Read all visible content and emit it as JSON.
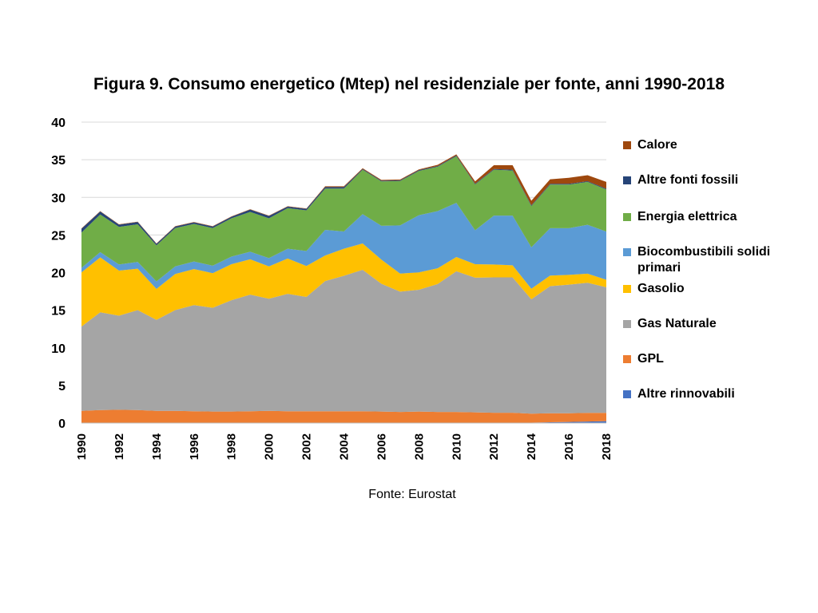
{
  "chart_data": {
    "type": "area",
    "stacked": true,
    "title": "Figura 9. Consumo energetico (Mtep) nel residenziale per fonte, anni 1990-2018",
    "source": "Fonte: Eurostat",
    "xlabel": "",
    "ylabel": "",
    "ylim": [
      0,
      40
    ],
    "yticks": [
      "0",
      "5",
      "10",
      "15",
      "20",
      "25",
      "30",
      "35",
      "40"
    ],
    "x": [
      1990,
      1991,
      1992,
      1993,
      1994,
      1995,
      1996,
      1997,
      1998,
      1999,
      2000,
      2001,
      2002,
      2003,
      2004,
      2005,
      2006,
      2007,
      2008,
      2009,
      2010,
      2011,
      2012,
      2013,
      2014,
      2015,
      2016,
      2017,
      2018
    ],
    "xticks": [
      "1990",
      "1992",
      "1994",
      "1996",
      "1998",
      "2000",
      "2002",
      "2004",
      "2006",
      "2008",
      "2010",
      "2012",
      "2014",
      "2016",
      "2018"
    ],
    "grid": "horizontal",
    "legend_position": "right",
    "series": [
      {
        "name": "Altre rinnovabili",
        "color": "#4472C4",
        "values": [
          0.02,
          0.02,
          0.02,
          0.02,
          0.02,
          0.02,
          0.02,
          0.02,
          0.02,
          0.02,
          0.02,
          0.02,
          0.02,
          0.02,
          0.02,
          0.02,
          0.02,
          0.02,
          0.02,
          0.02,
          0.02,
          0.02,
          0.02,
          0.02,
          0.05,
          0.1,
          0.15,
          0.2,
          0.25
        ]
      },
      {
        "name": "GPL",
        "color": "#ED7D31",
        "values": [
          1.6,
          1.7,
          1.75,
          1.7,
          1.6,
          1.6,
          1.55,
          1.5,
          1.5,
          1.55,
          1.6,
          1.55,
          1.55,
          1.55,
          1.55,
          1.55,
          1.5,
          1.45,
          1.5,
          1.45,
          1.45,
          1.4,
          1.35,
          1.35,
          1.2,
          1.2,
          1.15,
          1.15,
          1.1
        ]
      },
      {
        "name": "Gas Naturale",
        "color": "#A5A5A5",
        "values": [
          11.2,
          13.0,
          12.5,
          13.3,
          12.1,
          13.4,
          14.1,
          13.8,
          14.8,
          15.5,
          14.9,
          15.6,
          15.2,
          17.3,
          18.0,
          18.8,
          17.0,
          16.0,
          16.2,
          17.0,
          18.7,
          17.9,
          18.0,
          18.0,
          15.2,
          16.9,
          17.1,
          17.3,
          16.7
        ]
      },
      {
        "name": "Gasolio",
        "color": "#FFC000",
        "values": [
          7.2,
          7.3,
          6.0,
          5.5,
          4.1,
          4.8,
          4.8,
          4.6,
          4.8,
          4.7,
          4.3,
          4.7,
          4.1,
          3.4,
          3.6,
          3.5,
          3.2,
          2.4,
          2.3,
          2.1,
          1.9,
          1.8,
          1.7,
          1.6,
          1.4,
          1.4,
          1.3,
          1.2,
          1.0
        ]
      },
      {
        "name": "Biocombustibili solidi primari",
        "color": "#5B9BD5",
        "values": [
          0.6,
          0.7,
          0.8,
          0.9,
          1.0,
          1.0,
          1.0,
          1.0,
          1.0,
          1.0,
          1.1,
          1.3,
          2.0,
          3.4,
          2.3,
          3.9,
          4.5,
          6.4,
          7.6,
          7.6,
          7.2,
          4.5,
          6.5,
          6.6,
          5.5,
          6.3,
          6.2,
          6.5,
          6.4
        ]
      },
      {
        "name": "Energia elettrica",
        "color": "#70AD47",
        "values": [
          4.7,
          5.0,
          5.0,
          5.0,
          4.8,
          5.1,
          5.0,
          5.0,
          5.1,
          5.3,
          5.3,
          5.4,
          5.4,
          5.5,
          5.7,
          5.9,
          5.9,
          5.9,
          5.9,
          5.9,
          6.2,
          6.1,
          6.1,
          6.0,
          5.5,
          5.8,
          5.8,
          5.7,
          5.6
        ]
      },
      {
        "name": "Altre fonti fossili",
        "color": "#264478",
        "values": [
          0.5,
          0.4,
          0.3,
          0.3,
          0.2,
          0.2,
          0.2,
          0.2,
          0.2,
          0.3,
          0.3,
          0.2,
          0.2,
          0.2,
          0.2,
          0.1,
          0.1,
          0.1,
          0.1,
          0.1,
          0.1,
          0.1,
          0.1,
          0.1,
          0.1,
          0.1,
          0.1,
          0.1,
          0.1
        ]
      },
      {
        "name": "Calore",
        "color": "#9E480E",
        "values": [
          0.05,
          0.05,
          0.05,
          0.05,
          0.05,
          0.05,
          0.05,
          0.05,
          0.05,
          0.05,
          0.05,
          0.05,
          0.05,
          0.1,
          0.1,
          0.1,
          0.1,
          0.1,
          0.1,
          0.15,
          0.15,
          0.3,
          0.5,
          0.6,
          0.6,
          0.6,
          0.8,
          0.8,
          0.9
        ]
      }
    ]
  }
}
